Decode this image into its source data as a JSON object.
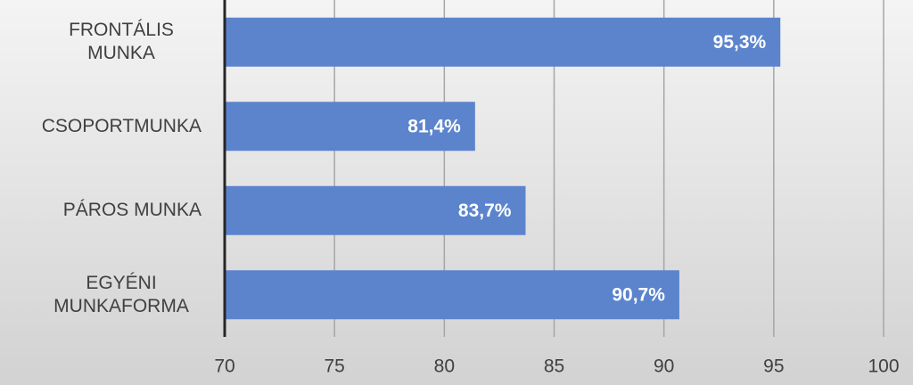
{
  "chart_data": {
    "type": "bar",
    "orientation": "horizontal",
    "categories": [
      "FRONTÁLIS MUNKA",
      "CSOPORTMUNKA",
      "PÁROS MUNKA",
      "EGYÉNI MUNKAFORMA"
    ],
    "values": [
      95.3,
      81.4,
      83.7,
      90.7
    ],
    "value_labels": [
      "95,3%",
      "81,4%",
      "83,7%",
      "90,7%"
    ],
    "color": "#5b84cd",
    "xlim": [
      70,
      100
    ],
    "xticks": [
      70,
      75,
      80,
      85,
      90,
      95,
      100
    ],
    "grid": true
  }
}
